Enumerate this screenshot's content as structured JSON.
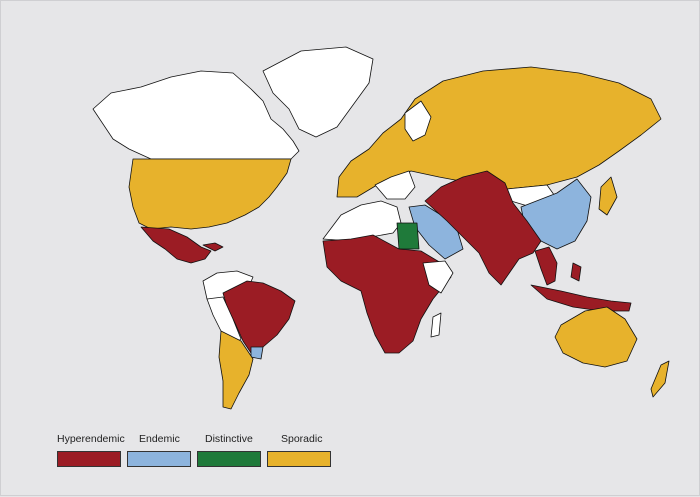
{
  "map": {
    "categories": [
      {
        "key": "hyperendemic",
        "label": "Hyperendemic",
        "color": "#9b1c24"
      },
      {
        "key": "endemic",
        "label": "Endemic",
        "color": "#8db4dd"
      },
      {
        "key": "distinctive",
        "label": "Distinctive",
        "color": "#1f7a3a"
      },
      {
        "key": "sporadic",
        "label": "Sporadic",
        "color": "#e7b22c"
      }
    ],
    "no_data_color": "#ffffff",
    "background_color": "#e6e6e8"
  }
}
